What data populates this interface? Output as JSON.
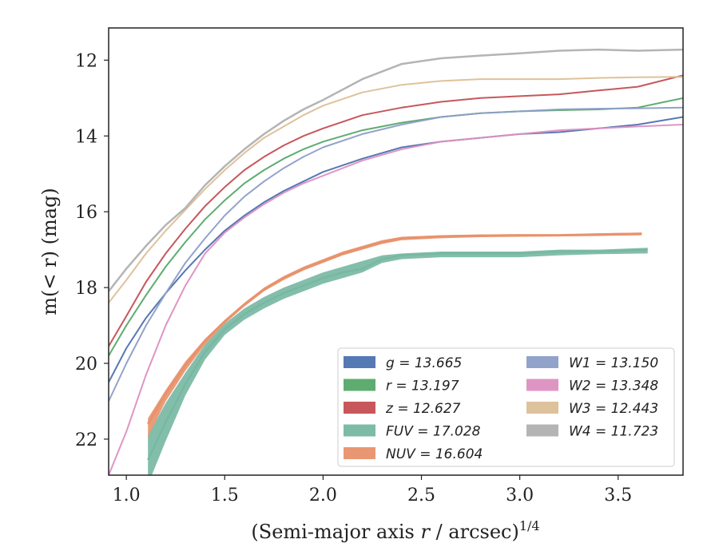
{
  "chart_data": {
    "type": "line",
    "xlabel": "(Semi-major axis r / arcsec)",
    "xlabel_italic_part": "r",
    "xlabel_superscript": "1/4",
    "ylabel": "m(< r) (mag)",
    "xlim": [
      0.91,
      3.83
    ],
    "ylim": [
      22.95,
      11.15
    ],
    "y_inverted": true,
    "xticks": [
      1.0,
      1.5,
      2.0,
      2.5,
      3.0,
      3.5
    ],
    "xtick_labels": [
      "1.0",
      "1.5",
      "2.0",
      "2.5",
      "3.0",
      "3.5"
    ],
    "yticks": [
      12,
      14,
      16,
      18,
      20,
      22
    ],
    "ytick_labels": [
      "12",
      "14",
      "16",
      "18",
      "20",
      "22"
    ],
    "grid": false,
    "legend_position": "lower-right",
    "series": [
      {
        "name": "g = 13.665",
        "band": "g",
        "total": "13.665",
        "color": "#4c72b0",
        "width": 2.0,
        "x": [
          0.91,
          1.0,
          1.1,
          1.2,
          1.3,
          1.4,
          1.5,
          1.6,
          1.7,
          1.8,
          1.9,
          2.0,
          2.2,
          2.4,
          2.6,
          2.8,
          3.0,
          3.2,
          3.4,
          3.6,
          3.83
        ],
        "y": [
          20.5,
          19.6,
          18.8,
          18.15,
          17.55,
          17.0,
          16.5,
          16.1,
          15.75,
          15.45,
          15.2,
          14.95,
          14.6,
          14.3,
          14.15,
          14.05,
          13.95,
          13.9,
          13.8,
          13.7,
          13.5
        ]
      },
      {
        "name": "r = 13.197",
        "band": "r",
        "total": "13.197",
        "color": "#55a868",
        "width": 2.0,
        "x": [
          0.91,
          1.0,
          1.1,
          1.2,
          1.3,
          1.4,
          1.5,
          1.6,
          1.7,
          1.8,
          1.9,
          2.0,
          2.2,
          2.4,
          2.6,
          2.8,
          3.0,
          3.2,
          3.4,
          3.6,
          3.83
        ],
        "y": [
          19.8,
          19.0,
          18.2,
          17.45,
          16.8,
          16.2,
          15.7,
          15.25,
          14.9,
          14.6,
          14.35,
          14.15,
          13.85,
          13.65,
          13.5,
          13.4,
          13.35,
          13.32,
          13.3,
          13.25,
          13.0
        ]
      },
      {
        "name": "z = 12.627",
        "band": "z",
        "total": "12.627",
        "color": "#c44e52",
        "width": 2.0,
        "x": [
          0.91,
          1.0,
          1.1,
          1.2,
          1.3,
          1.4,
          1.5,
          1.6,
          1.7,
          1.8,
          1.9,
          2.0,
          2.2,
          2.4,
          2.6,
          2.8,
          3.0,
          3.2,
          3.4,
          3.6,
          3.83
        ],
        "y": [
          19.55,
          18.75,
          17.85,
          17.1,
          16.45,
          15.85,
          15.35,
          14.9,
          14.55,
          14.25,
          14.0,
          13.8,
          13.45,
          13.25,
          13.1,
          13.0,
          12.95,
          12.9,
          12.8,
          12.7,
          12.4
        ]
      },
      {
        "name": "FUV = 17.028",
        "band": "FUV",
        "total": "17.028",
        "color": "#76b7a2",
        "width": 2.5,
        "band_fill": true,
        "x": [
          1.11,
          1.2,
          1.3,
          1.4,
          1.5,
          1.6,
          1.7,
          1.8,
          1.9,
          2.0,
          2.1,
          2.2,
          2.3,
          2.4,
          2.6,
          2.8,
          3.0,
          3.2,
          3.4,
          3.65
        ],
        "y": [
          22.55,
          21.55,
          20.55,
          19.7,
          19.1,
          18.7,
          18.4,
          18.15,
          17.95,
          17.75,
          17.6,
          17.5,
          17.25,
          17.15,
          17.1,
          17.1,
          17.1,
          17.05,
          17.05,
          17.0
        ],
        "y_upper": [
          21.9,
          21.05,
          20.25,
          19.5,
          18.95,
          18.55,
          18.25,
          18.0,
          17.8,
          17.6,
          17.45,
          17.3,
          17.15,
          17.1,
          17.05,
          17.05,
          17.05,
          17.0,
          17.0,
          16.95
        ],
        "y_lower": [
          23.2,
          22.05,
          20.85,
          19.9,
          19.25,
          18.85,
          18.55,
          18.3,
          18.1,
          17.9,
          17.75,
          17.6,
          17.35,
          17.25,
          17.2,
          17.2,
          17.2,
          17.15,
          17.12,
          17.1
        ]
      },
      {
        "name": "NUV = 16.604",
        "band": "NUV",
        "total": "16.604",
        "color": "#e8916c",
        "width": 3.0,
        "band_fill": true,
        "x": [
          1.11,
          1.2,
          1.3,
          1.4,
          1.5,
          1.6,
          1.7,
          1.8,
          1.9,
          2.0,
          2.1,
          2.2,
          2.3,
          2.4,
          2.6,
          2.8,
          3.0,
          3.2,
          3.4,
          3.62
        ],
        "y": [
          21.6,
          20.8,
          20.05,
          19.4,
          18.9,
          18.45,
          18.05,
          17.75,
          17.5,
          17.3,
          17.1,
          16.95,
          16.8,
          16.7,
          16.65,
          16.63,
          16.62,
          16.62,
          16.6,
          16.58
        ],
        "y_upper": [
          21.45,
          20.7,
          19.95,
          19.35,
          18.85,
          18.4,
          18.0,
          17.7,
          17.45,
          17.25,
          17.05,
          16.9,
          16.75,
          16.66,
          16.62,
          16.6,
          16.6,
          16.6,
          16.57,
          16.55
        ],
        "y_lower": [
          21.95,
          21.0,
          20.2,
          19.5,
          18.95,
          18.5,
          18.1,
          17.8,
          17.55,
          17.35,
          17.15,
          17.0,
          16.85,
          16.75,
          16.7,
          16.67,
          16.66,
          16.65,
          16.64,
          16.62
        ]
      },
      {
        "name": "W1 = 13.150",
        "band": "W1",
        "total": "13.150",
        "color": "#8c9ec7",
        "width": 2.0,
        "x": [
          0.91,
          1.0,
          1.1,
          1.2,
          1.3,
          1.4,
          1.5,
          1.6,
          1.7,
          1.8,
          1.9,
          2.0,
          2.2,
          2.4,
          2.6,
          2.8,
          3.0,
          3.2,
          3.4,
          3.6,
          3.83
        ],
        "y": [
          21.0,
          20.0,
          19.0,
          18.15,
          17.35,
          16.7,
          16.1,
          15.6,
          15.2,
          14.85,
          14.55,
          14.3,
          13.95,
          13.7,
          13.5,
          13.4,
          13.35,
          13.3,
          13.28,
          13.27,
          13.25
        ]
      },
      {
        "name": "W2 = 13.348",
        "band": "W2",
        "total": "13.348",
        "color": "#dd8fc1",
        "width": 2.0,
        "x": [
          0.91,
          1.0,
          1.1,
          1.2,
          1.3,
          1.4,
          1.5,
          1.6,
          1.7,
          1.8,
          1.9,
          2.0,
          2.2,
          2.4,
          2.6,
          2.8,
          3.0,
          3.2,
          3.4,
          3.6,
          3.83
        ],
        "y": [
          22.95,
          21.8,
          20.3,
          19.0,
          17.95,
          17.1,
          16.55,
          16.15,
          15.8,
          15.5,
          15.25,
          15.05,
          14.65,
          14.35,
          14.15,
          14.05,
          13.95,
          13.85,
          13.8,
          13.75,
          13.7
        ]
      },
      {
        "name": "W3 = 12.443",
        "band": "W3",
        "total": "12.443",
        "color": "#dcbf96",
        "width": 2.0,
        "x": [
          0.91,
          1.0,
          1.1,
          1.2,
          1.3,
          1.4,
          1.5,
          1.6,
          1.7,
          1.8,
          1.9,
          2.0,
          2.2,
          2.4,
          2.6,
          2.8,
          3.0,
          3.2,
          3.4,
          3.6,
          3.83
        ],
        "y": [
          18.4,
          17.8,
          17.1,
          16.5,
          15.95,
          15.4,
          14.9,
          14.45,
          14.05,
          13.75,
          13.45,
          13.2,
          12.85,
          12.65,
          12.55,
          12.5,
          12.5,
          12.5,
          12.47,
          12.45,
          12.44
        ]
      },
      {
        "name": "W4 = 11.723",
        "band": "W4",
        "total": "11.723",
        "color": "#b0b0b0",
        "width": 2.5,
        "x": [
          0.91,
          1.0,
          1.1,
          1.2,
          1.3,
          1.4,
          1.5,
          1.6,
          1.7,
          1.8,
          1.9,
          2.0,
          2.2,
          2.4,
          2.6,
          2.8,
          3.0,
          3.2,
          3.4,
          3.6,
          3.83
        ],
        "y": [
          18.1,
          17.5,
          16.9,
          16.35,
          15.9,
          15.3,
          14.8,
          14.35,
          13.95,
          13.6,
          13.3,
          13.05,
          12.5,
          12.1,
          11.95,
          11.88,
          11.82,
          11.75,
          11.72,
          11.75,
          11.72
        ]
      }
    ]
  }
}
